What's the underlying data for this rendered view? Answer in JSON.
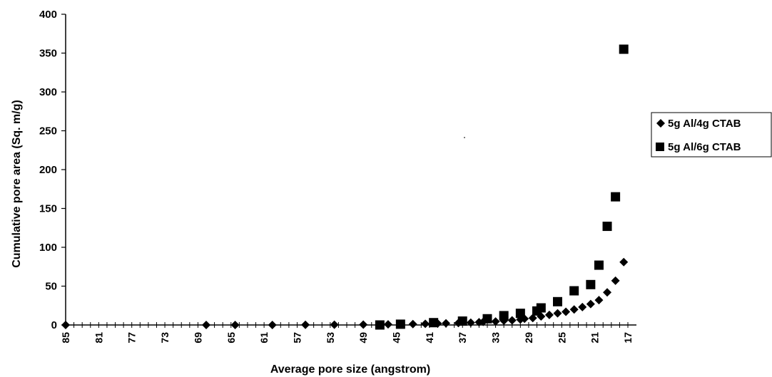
{
  "chart_data": {
    "type": "scatter",
    "xlabel": "Average pore size (angstrom)",
    "ylabel": "Cumulative pore area (Sq. m/g)",
    "x_reversed": true,
    "xlim": [
      85,
      17
    ],
    "ylim": [
      0,
      400
    ],
    "y_ticks": [
      "0",
      "50",
      "100",
      "150",
      "200",
      "250",
      "300",
      "350",
      "400"
    ],
    "x_tick_labels": [
      "85",
      "81",
      "77",
      "73",
      "69",
      "65",
      "61",
      "57",
      "53",
      "49",
      "45",
      "41",
      "37",
      "33",
      "29",
      "25",
      "21",
      "17"
    ],
    "grid": false,
    "legend_position": "right",
    "series": [
      {
        "name": "5g Al/4g CTAB",
        "marker": "diamond",
        "color": "#000000",
        "points": [
          [
            85,
            0
          ],
          [
            68,
            0
          ],
          [
            64.5,
            0
          ],
          [
            60,
            0
          ],
          [
            56,
            0.2
          ],
          [
            52.5,
            0.3
          ],
          [
            49,
            0.5
          ],
          [
            46,
            0.8
          ],
          [
            44.5,
            1
          ],
          [
            43,
            1.2
          ],
          [
            41.5,
            1.5
          ],
          [
            40,
            2
          ],
          [
            39,
            2.2
          ],
          [
            37.5,
            2.5
          ],
          [
            36,
            3
          ],
          [
            35,
            3.5
          ],
          [
            34.5,
            4
          ],
          [
            33,
            4.5
          ],
          [
            32,
            5.5
          ],
          [
            31,
            6
          ],
          [
            30,
            7
          ],
          [
            29.5,
            8
          ],
          [
            28.5,
            9
          ],
          [
            27.5,
            11
          ],
          [
            26.5,
            13
          ],
          [
            25.5,
            15
          ],
          [
            24.5,
            17
          ],
          [
            23.5,
            20
          ],
          [
            22.5,
            23
          ],
          [
            21.5,
            27
          ],
          [
            20.5,
            32
          ],
          [
            19.5,
            42
          ],
          [
            18.5,
            57
          ],
          [
            17.5,
            81
          ]
        ]
      },
      {
        "name": "5g Al/6g CTAB",
        "marker": "square",
        "color": "#000000",
        "points": [
          [
            47,
            0
          ],
          [
            44.5,
            1
          ],
          [
            40.5,
            3
          ],
          [
            37,
            5
          ],
          [
            34,
            8
          ],
          [
            32,
            12
          ],
          [
            30,
            15
          ],
          [
            28,
            18
          ],
          [
            27.5,
            22
          ],
          [
            25.5,
            30
          ],
          [
            23.5,
            44
          ],
          [
            21.5,
            52
          ],
          [
            20.5,
            77
          ],
          [
            19.5,
            127
          ],
          [
            18.5,
            165
          ],
          [
            17.5,
            355
          ]
        ]
      }
    ]
  }
}
